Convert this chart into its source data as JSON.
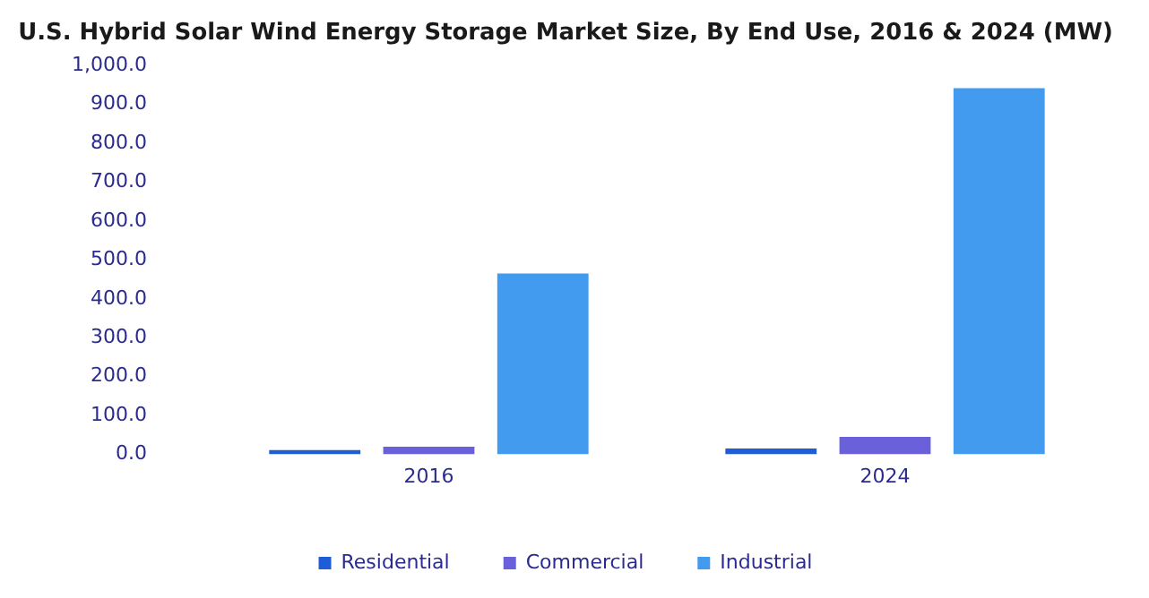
{
  "chart_data": {
    "type": "bar",
    "title": "U.S. Hybrid Solar Wind Energy Storage Market Size, By End Use, 2016 & 2024 (MW)",
    "categories": [
      "2016",
      "2024"
    ],
    "series": [
      {
        "name": "Residential",
        "color": "#1f5cd6",
        "values": [
          11,
          15
        ]
      },
      {
        "name": "Commercial",
        "color": "#6a60da",
        "values": [
          20,
          45
        ]
      },
      {
        "name": "Industrial",
        "color": "#439bf0",
        "values": [
          465,
          942
        ]
      }
    ],
    "ylim": [
      0,
      1000
    ],
    "yticks": [
      {
        "value": 0,
        "label": "0.0"
      },
      {
        "value": 100,
        "label": "100.0"
      },
      {
        "value": 200,
        "label": "200.0"
      },
      {
        "value": 300,
        "label": "300.0"
      },
      {
        "value": 400,
        "label": "400.0"
      },
      {
        "value": 500,
        "label": "500.0"
      },
      {
        "value": 600,
        "label": "600.0"
      },
      {
        "value": 700,
        "label": "700.0"
      },
      {
        "value": 800,
        "label": "800.0"
      },
      {
        "value": 900,
        "label": "900.0"
      },
      {
        "value": 1000,
        "label": "1,000.0"
      }
    ],
    "grid": false,
    "legend": "bottom"
  }
}
